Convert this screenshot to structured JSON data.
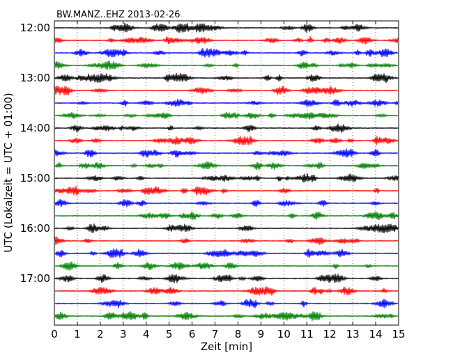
{
  "chart_data": {
    "type": "line",
    "title": "BW.MANZ..EHZ 2013-02-26",
    "xlabel": "Zeit  [min]",
    "ylabel": "UTC (Lokalzeit = UTC + 01:00)",
    "xlim": [
      0,
      15
    ],
    "x_ticks": [
      0,
      1,
      2,
      3,
      4,
      5,
      6,
      7,
      8,
      9,
      10,
      11,
      12,
      13,
      14,
      15
    ],
    "y_tick_labels": [
      "12:00",
      "13:00",
      "14:00",
      "15:00",
      "16:00",
      "17:00"
    ],
    "grid": "vertical dotted at each minute",
    "trace_interval_minutes": 15,
    "trace_start_times": [
      "12:00",
      "12:15",
      "12:30",
      "12:45",
      "13:00",
      "13:15",
      "13:30",
      "13:45",
      "14:00",
      "14:15",
      "14:30",
      "14:45",
      "15:00",
      "15:15",
      "15:30",
      "15:45",
      "16:00",
      "16:15",
      "16:30",
      "16:45",
      "17:00",
      "17:15",
      "17:30",
      "17:45"
    ],
    "trace_colors": [
      "#000000",
      "#ff0000",
      "#0000ff",
      "#008000"
    ]
  }
}
